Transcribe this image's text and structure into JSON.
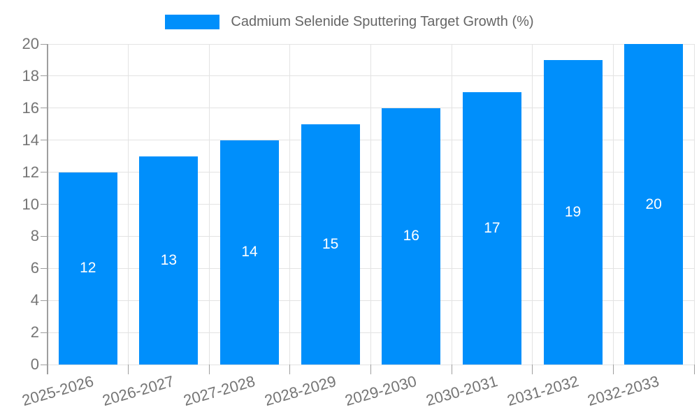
{
  "legend": {
    "label": "Cadmium Selenide Sputtering Target Growth (%)"
  },
  "chart_data": {
    "type": "bar",
    "title": "Cadmium Selenide Sputtering Target Growth (%)",
    "categories": [
      "2025-2026",
      "2026-2027",
      "2027-2028",
      "2028-2029",
      "2029-2030",
      "2030-2031",
      "2031-2032",
      "2032-2033"
    ],
    "values": [
      12,
      13,
      14,
      15,
      16,
      17,
      19,
      20
    ],
    "data_labels": [
      "12",
      "13",
      "14",
      "15",
      "16",
      "17",
      "19",
      "20"
    ],
    "xlabel": "",
    "ylabel": "",
    "ylim": [
      0,
      20
    ],
    "ytick_step": 2,
    "yticks": [
      0,
      2,
      4,
      6,
      8,
      10,
      12,
      14,
      16,
      18,
      20
    ],
    "grid": true,
    "legend_position": "top"
  },
  "colors": {
    "bar": "#008FFB",
    "grid": "#e3e3e3",
    "axis": "#9e9e9e",
    "tick_label": "#757575",
    "legend_text": "#666666",
    "data_label": "#ffffff",
    "background": "#ffffff"
  }
}
